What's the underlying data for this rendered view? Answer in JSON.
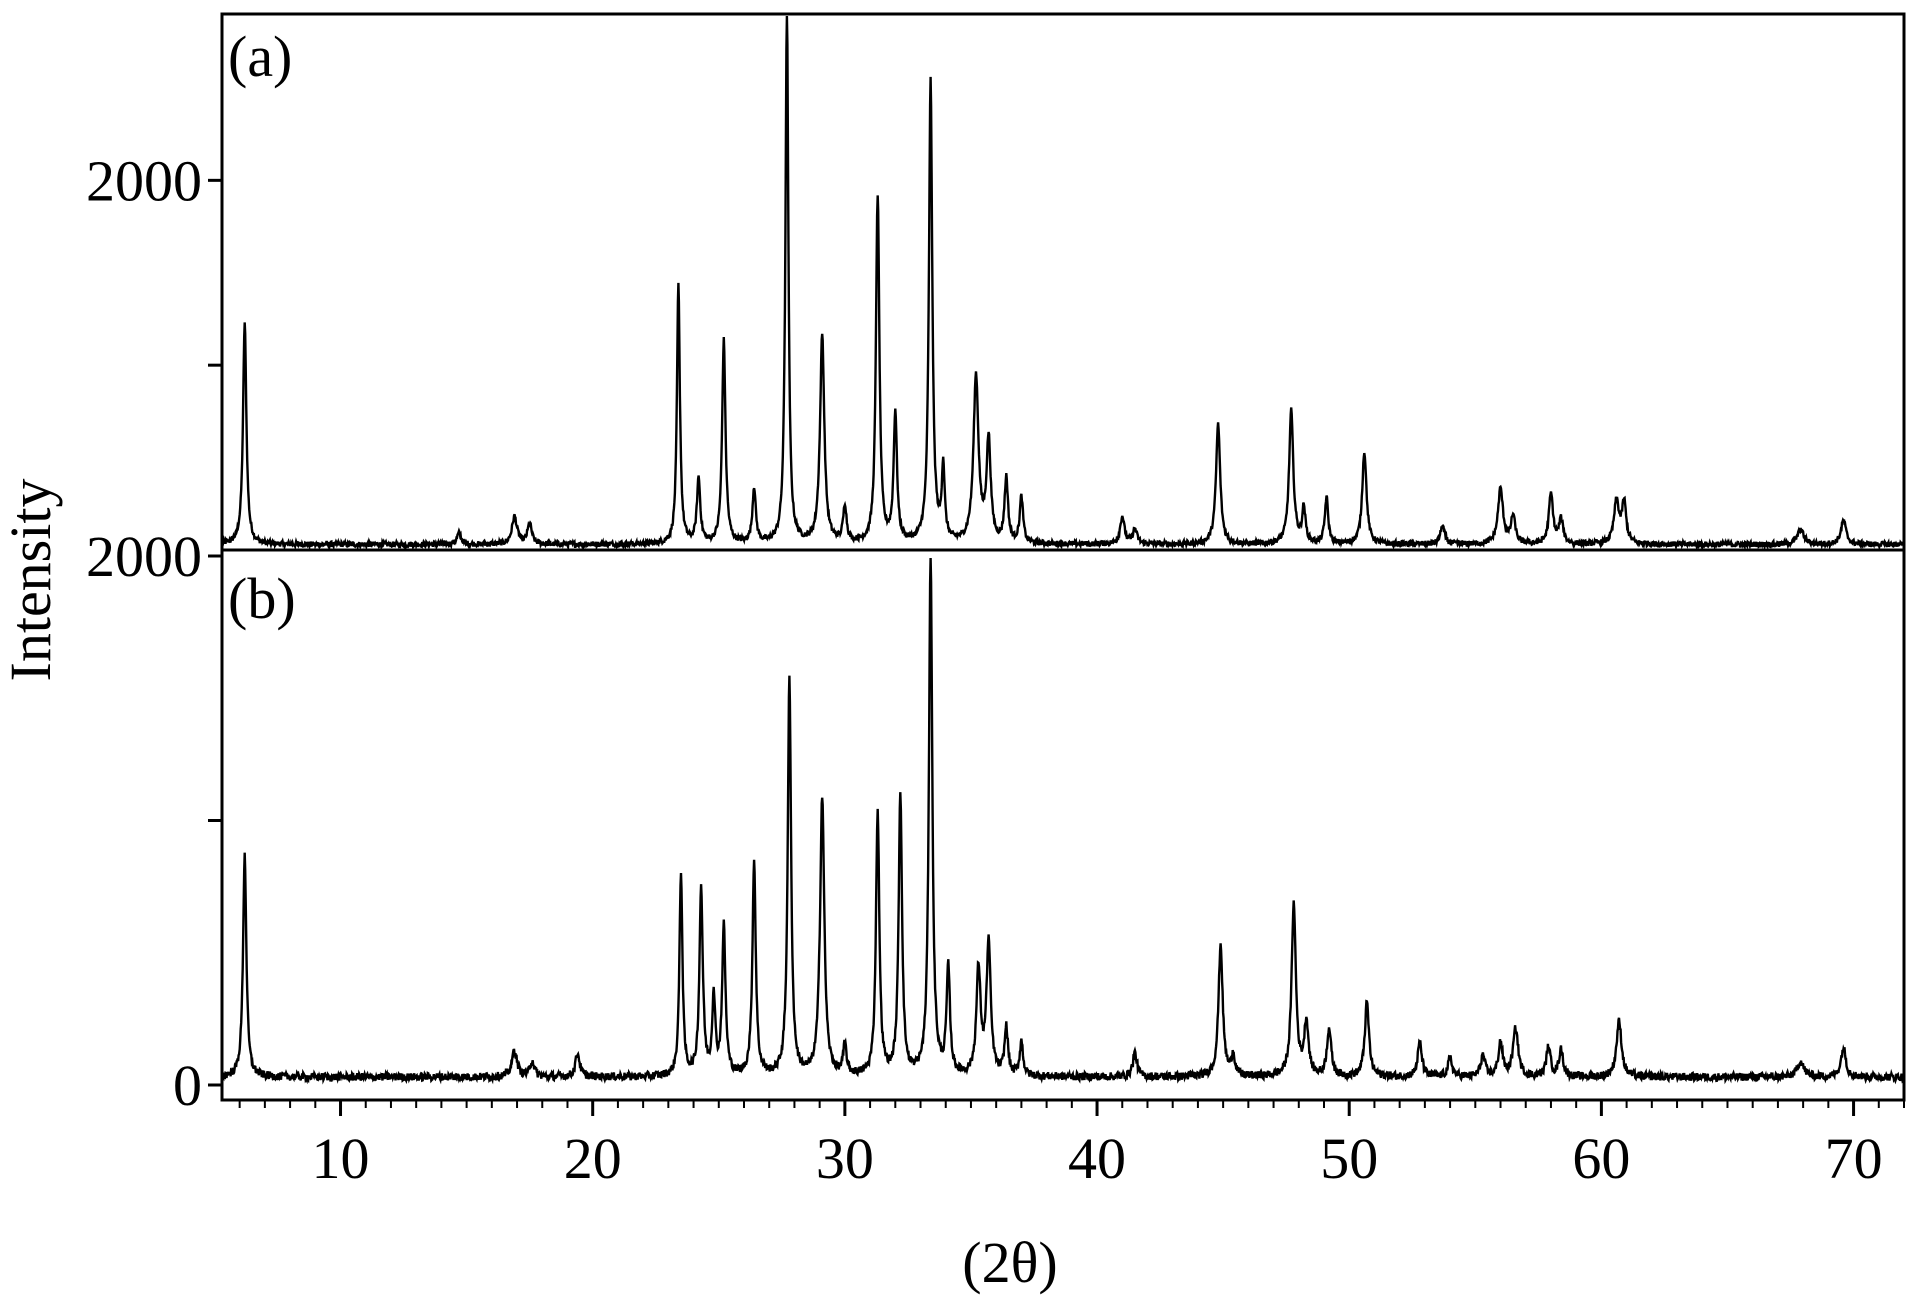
{
  "chart_data": {
    "type": "line",
    "xlabel": "(2θ)",
    "ylabel": "Intensity",
    "xlim": [
      5.3,
      72
    ],
    "x_ticks": [
      "10",
      "20",
      "30",
      "40",
      "50",
      "60",
      "70"
    ],
    "x_tick_values": [
      10,
      20,
      30,
      40,
      50,
      60,
      70
    ],
    "panels": [
      {
        "label": "(a)",
        "ylim": [
          0,
          2900
        ],
        "y_ticks": [
          {
            "value": 2000,
            "label": "2000"
          },
          {
            "value": 1000,
            "label": ""
          }
        ],
        "peaks": [
          [
            6.2,
            1200,
            0.08
          ],
          [
            14.7,
            60,
            0.1
          ],
          [
            16.9,
            150,
            0.12
          ],
          [
            17.5,
            110,
            0.1
          ],
          [
            23.4,
            1400,
            0.07
          ],
          [
            24.2,
            350,
            0.08
          ],
          [
            25.2,
            1100,
            0.08
          ],
          [
            26.4,
            300,
            0.08
          ],
          [
            27.7,
            2900,
            0.07
          ],
          [
            29.1,
            1130,
            0.1
          ],
          [
            30.0,
            200,
            0.08
          ],
          [
            31.3,
            1880,
            0.08
          ],
          [
            32.0,
            700,
            0.08
          ],
          [
            33.4,
            2500,
            0.08
          ],
          [
            33.9,
            400,
            0.07
          ],
          [
            35.2,
            900,
            0.12
          ],
          [
            35.7,
            550,
            0.1
          ],
          [
            36.4,
            350,
            0.08
          ],
          [
            37.0,
            250,
            0.08
          ],
          [
            41.0,
            150,
            0.1
          ],
          [
            41.5,
            80,
            0.1
          ],
          [
            44.8,
            650,
            0.1
          ],
          [
            47.7,
            720,
            0.1
          ],
          [
            48.2,
            190,
            0.08
          ],
          [
            49.1,
            250,
            0.08
          ],
          [
            50.6,
            500,
            0.1
          ],
          [
            53.7,
            100,
            0.1
          ],
          [
            56.0,
            300,
            0.12
          ],
          [
            56.5,
            150,
            0.1
          ],
          [
            58.0,
            270,
            0.1
          ],
          [
            58.4,
            130,
            0.1
          ],
          [
            60.6,
            230,
            0.12
          ],
          [
            60.9,
            220,
            0.1
          ],
          [
            67.9,
            80,
            0.15
          ],
          [
            69.6,
            130,
            0.12
          ]
        ]
      },
      {
        "label": "(b)",
        "ylim": [
          0,
          2000
        ],
        "y_ticks": [
          {
            "value": 2000,
            "label": "2000"
          },
          {
            "value": 1000,
            "label": ""
          },
          {
            "value": 0,
            "label": "0"
          }
        ],
        "peaks": [
          [
            6.2,
            840,
            0.08
          ],
          [
            16.9,
            100,
            0.12
          ],
          [
            17.6,
            60,
            0.1
          ],
          [
            19.4,
            90,
            0.1
          ],
          [
            23.5,
            770,
            0.07
          ],
          [
            24.3,
            710,
            0.08
          ],
          [
            24.8,
            300,
            0.07
          ],
          [
            25.2,
            560,
            0.08
          ],
          [
            26.4,
            810,
            0.08
          ],
          [
            27.8,
            1500,
            0.08
          ],
          [
            29.1,
            1060,
            0.1
          ],
          [
            30.0,
            110,
            0.08
          ],
          [
            31.3,
            990,
            0.08
          ],
          [
            32.2,
            1060,
            0.08
          ],
          [
            33.4,
            1980,
            0.08
          ],
          [
            34.1,
            400,
            0.08
          ],
          [
            35.3,
            400,
            0.1
          ],
          [
            35.7,
            500,
            0.1
          ],
          [
            36.4,
            180,
            0.08
          ],
          [
            37.0,
            130,
            0.08
          ],
          [
            41.5,
            90,
            0.1
          ],
          [
            44.9,
            500,
            0.1
          ],
          [
            45.4,
            80,
            0.08
          ],
          [
            47.8,
            650,
            0.1
          ],
          [
            48.3,
            200,
            0.1
          ],
          [
            49.2,
            180,
            0.1
          ],
          [
            50.7,
            280,
            0.1
          ],
          [
            52.8,
            130,
            0.1
          ],
          [
            54.0,
            70,
            0.1
          ],
          [
            55.3,
            80,
            0.1
          ],
          [
            56.0,
            130,
            0.1
          ],
          [
            56.6,
            180,
            0.12
          ],
          [
            57.9,
            110,
            0.1
          ],
          [
            58.4,
            100,
            0.1
          ],
          [
            60.7,
            210,
            0.12
          ],
          [
            67.9,
            60,
            0.15
          ],
          [
            69.6,
            110,
            0.12
          ]
        ]
      }
    ]
  }
}
